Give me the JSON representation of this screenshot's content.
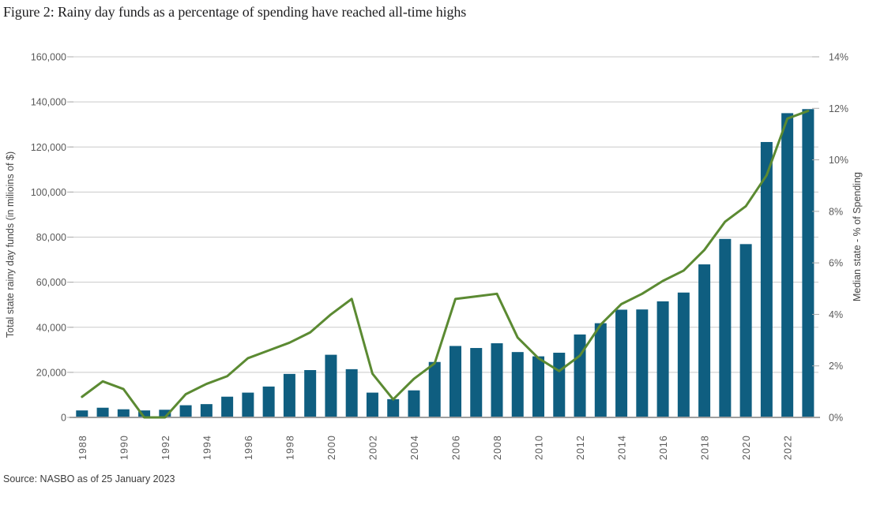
{
  "figure": {
    "title": "Figure 2: Rainy day funds as a percentage of spending have reached all-time highs",
    "source": "Source: NASBO as of 25 January 2023"
  },
  "chart_data": {
    "type": "combo_bar_line",
    "title": "Figure 2: Rainy day funds as a percentage of spending have reached all-time highs",
    "grid": "horizontal",
    "legend": "none",
    "categories": [
      1988,
      1989,
      1990,
      1991,
      1992,
      1993,
      1994,
      1995,
      1996,
      1997,
      1998,
      1999,
      2000,
      2001,
      2002,
      2003,
      2004,
      2005,
      2006,
      2007,
      2008,
      2009,
      2010,
      2011,
      2012,
      2013,
      2014,
      2015,
      2016,
      2017,
      2018,
      2019,
      2020,
      2021,
      2022,
      2023
    ],
    "series": [
      {
        "name": "Total state rainy day funds",
        "type": "bar",
        "axis": "left",
        "values": [
          3100,
          4300,
          3600,
          3100,
          3400,
          5400,
          5900,
          9200,
          11000,
          13700,
          19300,
          21000,
          27800,
          21400,
          11000,
          8100,
          12000,
          24600,
          31700,
          30800,
          32900,
          29000,
          27100,
          28700,
          36800,
          41800,
          47800,
          47900,
          51500,
          55400,
          67900,
          79200,
          76900,
          122200,
          135000,
          136800
        ]
      },
      {
        "name": "Median state - % of Spending",
        "type": "line",
        "axis": "right",
        "values": [
          0.8,
          1.4,
          1.1,
          0.0,
          0.0,
          0.9,
          1.3,
          1.6,
          2.3,
          2.6,
          2.9,
          3.3,
          4.0,
          4.6,
          1.7,
          0.7,
          1.5,
          2.1,
          4.6,
          4.7,
          4.8,
          3.1,
          2.3,
          1.8,
          2.4,
          3.6,
          4.4,
          4.8,
          5.3,
          5.7,
          6.5,
          7.6,
          8.2,
          9.4,
          11.6,
          11.9
        ]
      }
    ],
    "left_axis": {
      "label": "Total state rainy day funds (in milioins of $)",
      "min": 0,
      "max": 160000,
      "tick_step": 20000,
      "ticks": [
        "0",
        "20,000",
        "40,000",
        "60,000",
        "80,000",
        "100,000",
        "120,000",
        "140,000",
        "160,000"
      ]
    },
    "right_axis": {
      "label": "Median state - % of Spending",
      "min": 0,
      "max": 14,
      "tick_step": 2,
      "ticks": [
        "0%",
        "2%",
        "4%",
        "6%",
        "8%",
        "10%",
        "12%",
        "14%"
      ]
    },
    "x_axis": {
      "ticks": [
        "1988",
        "1990",
        "1992",
        "1994",
        "1996",
        "1998",
        "2000",
        "2002",
        "2004",
        "2006",
        "2008",
        "2010",
        "2012",
        "2014",
        "2016",
        "2018",
        "2020",
        "2022"
      ]
    },
    "colors": {
      "bar": "#0F5E80",
      "line": "#5B8A32",
      "grid": "#C9C9C9",
      "axis_line": "#9E9E9E",
      "tick_mark": "#ABABAB"
    }
  }
}
